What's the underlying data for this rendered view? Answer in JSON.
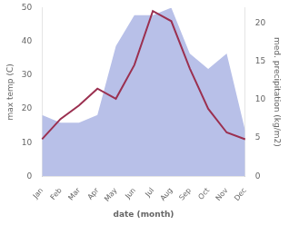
{
  "chart_data": {
    "type": "line",
    "xlabel": "date (month)",
    "ylabel": "max temp (C)",
    "y2label": "med. precipitation (kg/m2)",
    "categories": [
      "Jan",
      "Feb",
      "Mar",
      "Apr",
      "May",
      "Jun",
      "Jul",
      "Aug",
      "Sep",
      "Oct",
      "Nov",
      "Dec"
    ],
    "series": [
      {
        "type": "area",
        "color": "#b8c0e8",
        "axis": "y2",
        "values": [
          8,
          7,
          7,
          8,
          17,
          21,
          21,
          22,
          16,
          14,
          16,
          6
        ]
      },
      {
        "type": "line",
        "color": "#9b3050",
        "values": [
          11,
          17,
          21,
          26,
          23,
          33,
          49,
          46,
          32,
          20,
          13,
          11
        ]
      }
    ],
    "ylim": [
      0,
      50
    ],
    "yticks": [
      0,
      10,
      20,
      30,
      40,
      50
    ],
    "y2lim": [
      0,
      22
    ],
    "y2ticks": [
      0,
      5,
      10,
      15,
      20
    ],
    "grid": false
  }
}
